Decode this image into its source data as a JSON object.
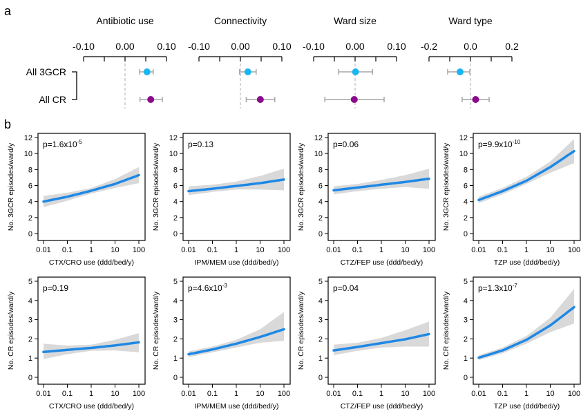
{
  "panel_labels": {
    "a": "a",
    "b": "b"
  },
  "chart_data": [
    {
      "type": "forest",
      "row_labels": [
        "All 3GCR",
        "All CR"
      ],
      "colors": {
        "All 3GCR": "#1ab6f0",
        "All CR": "#8b0a8c",
        "ci_line": "#a6a6a6",
        "zero_line": "#bfbfbf"
      },
      "panels": [
        {
          "title": "Antibiotic use",
          "xlim": [
            -0.1,
            0.1
          ],
          "ticks": [
            "-0.10",
            "0.00",
            "0.10"
          ],
          "tick_values": [
            -0.1,
            0.0,
            0.1
          ],
          "estimates": [
            {
              "row": "All 3GCR",
              "est": 0.053,
              "lo": 0.035,
              "hi": 0.068
            },
            {
              "row": "All CR",
              "est": 0.062,
              "lo": 0.036,
              "hi": 0.09
            }
          ]
        },
        {
          "title": "Connectivity",
          "xlim": [
            -0.1,
            0.1
          ],
          "ticks": [
            "-0.10",
            "0.00",
            "0.10"
          ],
          "tick_values": [
            -0.1,
            0.0,
            0.1
          ],
          "estimates": [
            {
              "row": "All 3GCR",
              "est": 0.018,
              "lo": -0.002,
              "hi": 0.038
            },
            {
              "row": "All CR",
              "est": 0.048,
              "lo": 0.014,
              "hi": 0.083
            }
          ]
        },
        {
          "title": "Ward size",
          "xlim": [
            -0.1,
            0.1
          ],
          "ticks": [
            "-0.10",
            "0.00",
            "0.10"
          ],
          "tick_values": [
            -0.1,
            0.0,
            0.1
          ],
          "estimates": [
            {
              "row": "All 3GCR",
              "est": 0.001,
              "lo": -0.04,
              "hi": 0.042
            },
            {
              "row": "All CR",
              "est": -0.002,
              "lo": -0.073,
              "hi": 0.07
            }
          ]
        },
        {
          "title": "Ward type",
          "xlim": [
            -0.2,
            0.2
          ],
          "ticks": [
            "-0.2",
            "0.0",
            "0.2"
          ],
          "tick_values": [
            -0.2,
            0.0,
            0.2
          ],
          "estimates": [
            {
              "row": "All 3GCR",
              "est": -0.05,
              "lo": -0.11,
              "hi": -0.003
            },
            {
              "row": "All CR",
              "est": 0.025,
              "lo": -0.04,
              "hi": 0.09
            }
          ]
        }
      ]
    },
    {
      "type": "line",
      "x_scale": "log10",
      "x_ticks": [
        "0.01",
        "0.1",
        "1",
        "10",
        "100"
      ],
      "x_tick_values": [
        0.01,
        0.1,
        1,
        10,
        100
      ],
      "xlim": [
        0.01,
        100
      ],
      "line_color": "#1e88e5",
      "band_color": "#d9d9d9",
      "rows": [
        {
          "ylabel": "No. 3GCR episodes/ward/y",
          "ylim": [
            0,
            12
          ],
          "y_ticks": [
            "0",
            "2",
            "4",
            "6",
            "8",
            "10",
            "12"
          ],
          "y_tick_values": [
            0,
            2,
            4,
            6,
            8,
            10,
            12
          ],
          "panels": [
            {
              "xlabel": "CTX/CRO use (ddd/bed/y)",
              "p_base": "p=1.6x10",
              "p_exp": "-5",
              "x": [
                0.01,
                0.1,
                1,
                10,
                100
              ],
              "fit": [
                4.0,
                4.6,
                5.35,
                6.2,
                7.3
              ],
              "lower": [
                3.3,
                4.1,
                5.0,
                5.7,
                6.3
              ],
              "upper": [
                4.7,
                5.1,
                5.7,
                6.8,
                8.3
              ]
            },
            {
              "xlabel": "IPM/MEM use (ddd/bed/y)",
              "p_base": "p=0.13",
              "p_exp": "",
              "x": [
                0.01,
                0.1,
                1,
                10,
                100
              ],
              "fit": [
                5.3,
                5.6,
                5.95,
                6.3,
                6.75
              ],
              "lower": [
                4.8,
                5.2,
                5.5,
                5.5,
                5.4
              ],
              "upper": [
                5.9,
                6.1,
                6.5,
                7.2,
                8.1
              ]
            },
            {
              "xlabel": "CTZ/FEP use (ddd/bed/y)",
              "p_base": "p=0.06",
              "p_exp": "",
              "x": [
                0.01,
                0.1,
                1,
                10,
                100
              ],
              "fit": [
                5.4,
                5.75,
                6.1,
                6.45,
                6.85
              ],
              "lower": [
                4.9,
                5.3,
                5.6,
                5.8,
                5.6
              ],
              "upper": [
                5.9,
                6.2,
                6.7,
                7.3,
                8.1
              ]
            },
            {
              "xlabel": "TZP use (ddd/bed/y)",
              "p_base": "p=9.9x10",
              "p_exp": "-10",
              "x": [
                0.01,
                0.1,
                1,
                10,
                100
              ],
              "fit": [
                4.2,
                5.3,
                6.6,
                8.3,
                10.3
              ],
              "lower": [
                3.8,
                4.9,
                6.2,
                7.6,
                8.8
              ],
              "upper": [
                4.6,
                5.7,
                7.1,
                9.0,
                11.8
              ]
            }
          ]
        },
        {
          "ylabel": "No. CR episodes/ward/y",
          "ylim": [
            0,
            5
          ],
          "y_ticks": [
            "0",
            "1",
            "2",
            "3",
            "4",
            "5"
          ],
          "y_tick_values": [
            0,
            1,
            2,
            3,
            4,
            5
          ],
          "panels": [
            {
              "xlabel": "CTX/CRO use (ddd/bed/y)",
              "p_base": "p=0.19",
              "p_exp": "",
              "x": [
                0.01,
                0.1,
                1,
                10,
                100
              ],
              "fit": [
                1.32,
                1.43,
                1.53,
                1.66,
                1.82
              ],
              "lower": [
                0.95,
                1.2,
                1.38,
                1.4,
                1.3
              ],
              "upper": [
                1.75,
                1.65,
                1.7,
                1.95,
                2.3
              ]
            },
            {
              "xlabel": "IPM/MEM use (ddd/bed/y)",
              "p_base": "p=4.6x10",
              "p_exp": "-3",
              "x": [
                0.01,
                0.1,
                1,
                10,
                100
              ],
              "fit": [
                1.2,
                1.45,
                1.75,
                2.1,
                2.5
              ],
              "lower": [
                1.05,
                1.3,
                1.55,
                1.8,
                1.9
              ],
              "upper": [
                1.35,
                1.6,
                1.95,
                2.5,
                3.4
              ]
            },
            {
              "xlabel": "CTZ/FEP use (ddd/bed/y)",
              "p_base": "p=0.04",
              "p_exp": "",
              "x": [
                0.01,
                0.1,
                1,
                10,
                100
              ],
              "fit": [
                1.4,
                1.58,
                1.78,
                1.98,
                2.25
              ],
              "lower": [
                1.15,
                1.38,
                1.55,
                1.6,
                1.6
              ],
              "upper": [
                1.7,
                1.8,
                2.05,
                2.45,
                2.9
              ]
            },
            {
              "xlabel": "TZP use (ddd/bed/y)",
              "p_base": "p=1.3x10",
              "p_exp": "-7",
              "x": [
                0.01,
                0.1,
                1,
                10,
                100
              ],
              "fit": [
                1.02,
                1.4,
                1.95,
                2.7,
                3.65
              ],
              "lower": [
                0.9,
                1.25,
                1.75,
                2.35,
                2.8
              ],
              "upper": [
                1.15,
                1.55,
                2.15,
                3.1,
                4.6
              ]
            }
          ]
        }
      ]
    }
  ]
}
